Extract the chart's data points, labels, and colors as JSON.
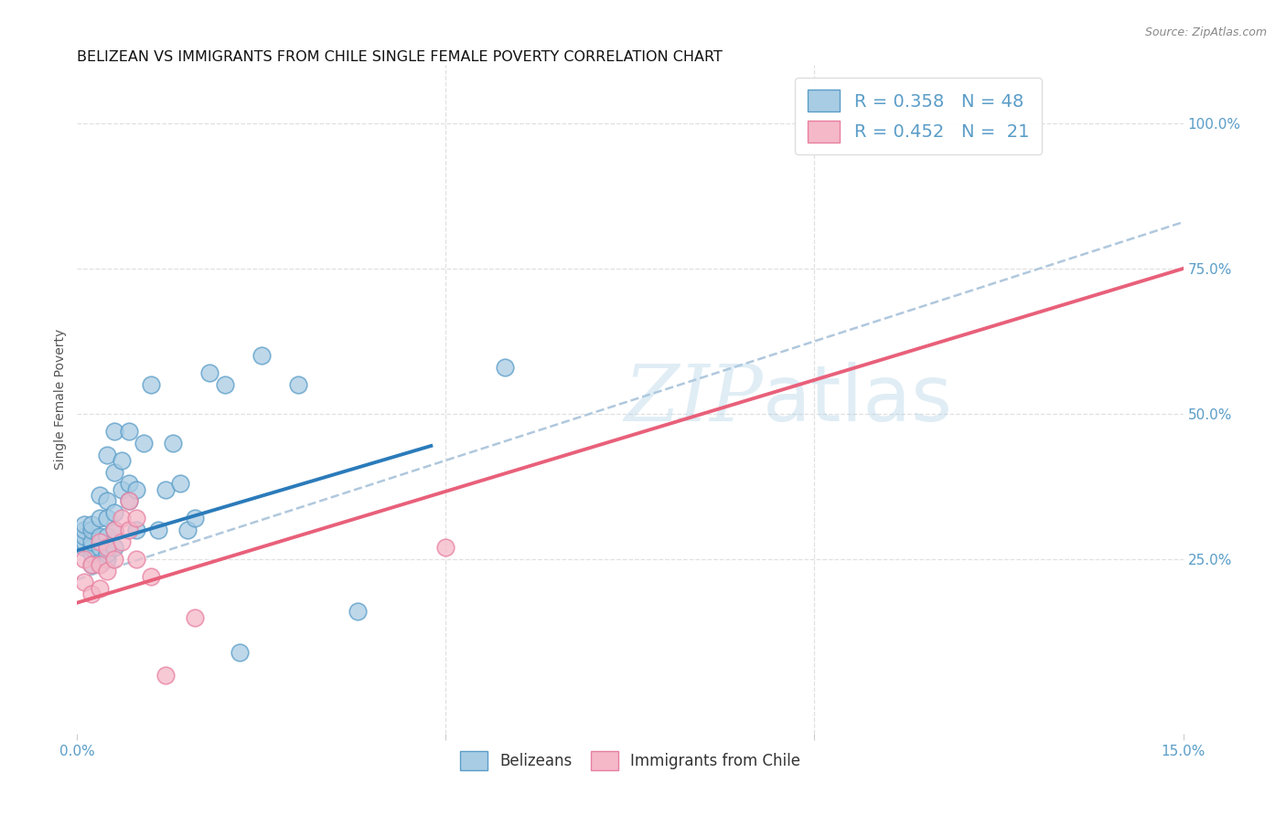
{
  "title": "BELIZEAN VS IMMIGRANTS FROM CHILE SINGLE FEMALE POVERTY CORRELATION CHART",
  "source": "Source: ZipAtlas.com",
  "ylabel": "Single Female Poverty",
  "ylabel_right_ticks": [
    "100.0%",
    "75.0%",
    "50.0%",
    "25.0%"
  ],
  "ylabel_right_vals": [
    1.0,
    0.75,
    0.5,
    0.25
  ],
  "xlim": [
    0.0,
    0.15
  ],
  "ylim": [
    -0.05,
    1.1
  ],
  "blue_color": "#a8cce4",
  "pink_color": "#f4b8c8",
  "blue_edge_color": "#5a9dc8",
  "pink_edge_color": "#e87fa0",
  "blue_line_color": "#2b7bba",
  "pink_line_color": "#e8607a",
  "dash_line_color": "#b0c8dd",
  "watermark_color": "#a8cce4",
  "blue_scatter_x": [
    0.001,
    0.001,
    0.001,
    0.001,
    0.001,
    0.002,
    0.002,
    0.002,
    0.002,
    0.002,
    0.002,
    0.003,
    0.003,
    0.003,
    0.003,
    0.004,
    0.004,
    0.004,
    0.004,
    0.004,
    0.004,
    0.005,
    0.005,
    0.005,
    0.005,
    0.005,
    0.006,
    0.006,
    0.007,
    0.007,
    0.007,
    0.008,
    0.008,
    0.009,
    0.01,
    0.011,
    0.012,
    0.013,
    0.014,
    0.015,
    0.016,
    0.018,
    0.02,
    0.022,
    0.025,
    0.03,
    0.038,
    0.058
  ],
  "blue_scatter_y": [
    0.27,
    0.28,
    0.29,
    0.3,
    0.31,
    0.24,
    0.26,
    0.27,
    0.28,
    0.3,
    0.31,
    0.27,
    0.29,
    0.32,
    0.36,
    0.25,
    0.26,
    0.29,
    0.32,
    0.35,
    0.43,
    0.27,
    0.3,
    0.33,
    0.4,
    0.47,
    0.37,
    0.42,
    0.35,
    0.38,
    0.47,
    0.3,
    0.37,
    0.45,
    0.55,
    0.3,
    0.37,
    0.45,
    0.38,
    0.3,
    0.32,
    0.57,
    0.55,
    0.09,
    0.6,
    0.55,
    0.16,
    0.58
  ],
  "pink_scatter_x": [
    0.001,
    0.001,
    0.002,
    0.002,
    0.003,
    0.003,
    0.003,
    0.004,
    0.004,
    0.005,
    0.005,
    0.006,
    0.006,
    0.007,
    0.007,
    0.008,
    0.008,
    0.01,
    0.012,
    0.016,
    0.05
  ],
  "pink_scatter_y": [
    0.21,
    0.25,
    0.19,
    0.24,
    0.2,
    0.24,
    0.28,
    0.23,
    0.27,
    0.25,
    0.3,
    0.28,
    0.32,
    0.3,
    0.35,
    0.25,
    0.32,
    0.22,
    0.05,
    0.15,
    0.27
  ],
  "blue_line_x": [
    0.0,
    0.048
  ],
  "blue_line_y": [
    0.265,
    0.445
  ],
  "pink_line_x": [
    0.0,
    0.15
  ],
  "pink_line_y": [
    0.175,
    0.75
  ],
  "dash_line_x": [
    0.0,
    0.15
  ],
  "dash_line_y": [
    0.215,
    0.83
  ],
  "grid_vals": [
    0.25,
    0.5,
    0.75,
    1.0
  ],
  "grid_color": "#e0e0e0",
  "background_color": "#ffffff",
  "title_fontsize": 11.5,
  "label_fontsize": 10,
  "tick_fontsize": 11,
  "legend_fontsize": 14,
  "tick_color": "#5a9dc8"
}
